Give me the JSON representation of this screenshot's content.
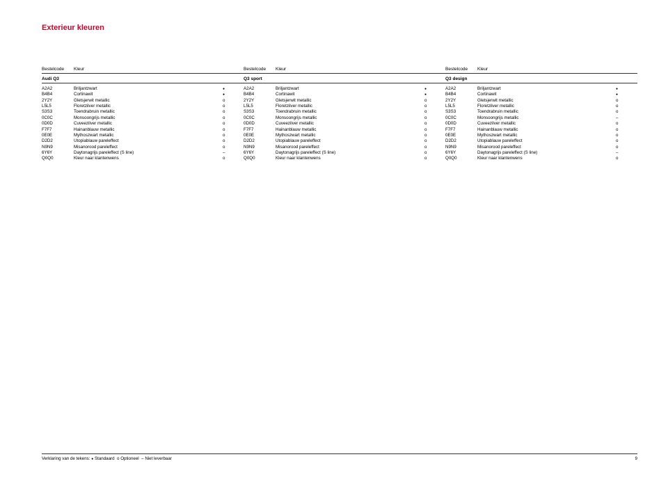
{
  "title": "Exterieur kleuren",
  "legend": {
    "prefix": "Verklaring van de tekens:",
    "standard": "Standaard",
    "optional_sym": "o",
    "optional": "Optioneel",
    "na_sym": "–",
    "na": "Niet leverbaar"
  },
  "page_number": "9",
  "header_labels": {
    "code": "Bestelcode",
    "name": "Kleur"
  },
  "models": [
    "Audi Q3",
    "Q3 sport",
    "Q3 design"
  ],
  "groups": [
    [
      {
        "code": "A2A2",
        "name": "Briljantzwart",
        "mark": "•"
      },
      {
        "code": "B4B4",
        "name": "Cortinawit",
        "mark": "•"
      },
      {
        "code": "2Y2Y",
        "name": "Gletsjerwit metallic",
        "mark": "o"
      },
      {
        "code": "L5L5",
        "name": "Floretzilver metallic",
        "mark": "o"
      },
      {
        "code": "S3S3",
        "name": "Toendrabruin metallic",
        "mark": "o"
      },
      {
        "code": "0C0C",
        "name": "Monsoongrijs metallic",
        "mark": "o"
      },
      {
        "code": "0D0D",
        "name": "Cuveezilver metallic",
        "mark": "o"
      },
      {
        "code": "F7F7",
        "name": "Hainanblauw metallic",
        "mark": "o"
      },
      {
        "code": "0E0E",
        "name": "Mythoszwart metallic",
        "mark": "o"
      },
      {
        "code": "D2D2",
        "name": "Utopiablauw pareleffect",
        "mark": "o"
      },
      {
        "code": "N9N9",
        "name": "Misanorood pareleffect",
        "mark": "o"
      },
      {
        "code": "6Y6Y",
        "name": "Daytonagrijs pareleffect (S line)",
        "mark": "–"
      },
      {
        "code": "Q0Q0",
        "name": "Kleur naar klantenwens",
        "mark": "o"
      }
    ],
    [
      {
        "code": "A2A2",
        "name": "Briljantzwart",
        "mark": "•"
      },
      {
        "code": "B4B4",
        "name": "Cortinawit",
        "mark": "•"
      },
      {
        "code": "2Y2Y",
        "name": "Gletsjerwit metallic",
        "mark": "o"
      },
      {
        "code": "L5L5",
        "name": "Floretzilver metallic",
        "mark": "o"
      },
      {
        "code": "S3S3",
        "name": "Toendrabruin metallic",
        "mark": "o"
      },
      {
        "code": "0C0C",
        "name": "Monsoongrijs metallic",
        "mark": "o"
      },
      {
        "code": "0D0D",
        "name": "Cuveezilver metallic",
        "mark": "o"
      },
      {
        "code": "F7F7",
        "name": "Hainanblauw metallic",
        "mark": "o"
      },
      {
        "code": "0E0E",
        "name": "Mythoszwart metallic",
        "mark": "o"
      },
      {
        "code": "D2D2",
        "name": "Utopiablauw pareleffect",
        "mark": "o"
      },
      {
        "code": "N9N9",
        "name": "Misanorood pareleffect",
        "mark": "o"
      },
      {
        "code": "6Y6Y",
        "name": "Daytonagrijs pareleffect (S line)",
        "mark": "o"
      },
      {
        "code": "Q0Q0",
        "name": "Kleur naar klantenwens",
        "mark": "o"
      }
    ],
    [
      {
        "code": "A2A2",
        "name": "Briljantzwart",
        "mark": "•"
      },
      {
        "code": "B4B4",
        "name": "Cortinawit",
        "mark": "•"
      },
      {
        "code": "2Y2Y",
        "name": "Gletsjerwit metallic",
        "mark": "o"
      },
      {
        "code": "L5L5",
        "name": "Floretzilver metallic",
        "mark": "o"
      },
      {
        "code": "S3S3",
        "name": "Toendrabruin metallic",
        "mark": "o"
      },
      {
        "code": "0C0C",
        "name": "Monsoongrijs metallic",
        "mark": "–"
      },
      {
        "code": "0D0D",
        "name": "Cuveezilver metallic",
        "mark": "o"
      },
      {
        "code": "F7F7",
        "name": "Hainanblauw metallic",
        "mark": "o"
      },
      {
        "code": "0E0E",
        "name": "Mythoszwart metallic",
        "mark": "o"
      },
      {
        "code": "D2D2",
        "name": "Utopiablauw pareleffect",
        "mark": "o"
      },
      {
        "code": "N9N9",
        "name": "Misanorood pareleffect",
        "mark": "o"
      },
      {
        "code": "6Y6Y",
        "name": "Daytonagrijs pareleffect (S line)",
        "mark": "–"
      },
      {
        "code": "Q0Q0",
        "name": "Kleur naar klantenwens",
        "mark": "o"
      }
    ]
  ]
}
